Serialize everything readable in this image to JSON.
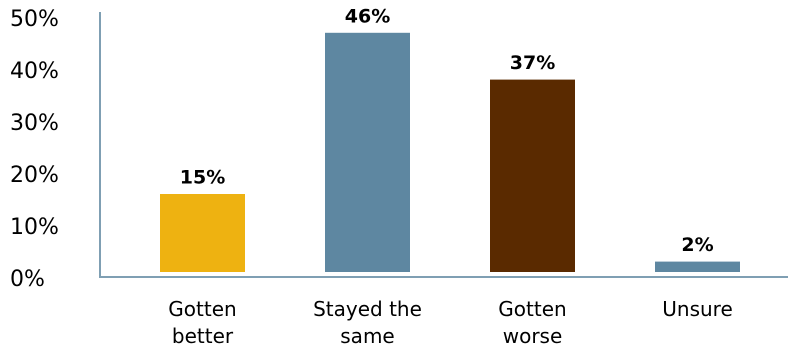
{
  "chart_data": {
    "type": "bar",
    "categories": [
      "Gotten better",
      "Stayed the same",
      "Gotten worse",
      "Unsure"
    ],
    "values": [
      15,
      46,
      37,
      2
    ],
    "value_labels": [
      "15%",
      "46%",
      "37%",
      "2%"
    ],
    "colors": [
      "#eeb211",
      "#5e87a1",
      "#5a2a00",
      "#5e87a1"
    ],
    "ylim": [
      0,
      50
    ],
    "yticks": [
      {
        "value": 0,
        "label": "0%"
      },
      {
        "value": 10,
        "label": "10%"
      },
      {
        "value": 20,
        "label": "20%"
      },
      {
        "value": 30,
        "label": "30%"
      },
      {
        "value": 40,
        "label": "40%"
      },
      {
        "value": 50,
        "label": "50%"
      }
    ],
    "grid": false
  }
}
